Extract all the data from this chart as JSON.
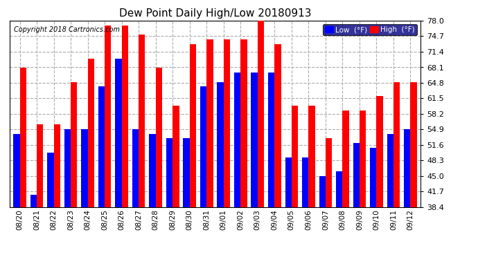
{
  "title": "Dew Point Daily High/Low 20180913",
  "copyright": "Copyright 2018 Cartronics.com",
  "legend_low_label": "Low  (°F)",
  "legend_high_label": "High  (°F)",
  "dates": [
    "08/20",
    "08/21",
    "08/22",
    "08/23",
    "08/24",
    "08/25",
    "08/26",
    "08/27",
    "08/28",
    "08/29",
    "08/30",
    "08/31",
    "09/01",
    "09/02",
    "09/03",
    "09/04",
    "09/05",
    "09/06",
    "09/07",
    "09/08",
    "09/09",
    "09/10",
    "09/11",
    "09/12"
  ],
  "low_values": [
    54.0,
    41.0,
    50.0,
    55.0,
    55.0,
    64.0,
    70.0,
    55.0,
    54.0,
    53.0,
    53.0,
    64.0,
    65.0,
    67.0,
    67.0,
    67.0,
    49.0,
    49.0,
    45.0,
    46.0,
    52.0,
    51.0,
    54.0,
    55.0
  ],
  "high_values": [
    68.0,
    56.0,
    56.0,
    65.0,
    70.0,
    77.0,
    77.0,
    75.0,
    68.0,
    60.0,
    73.0,
    74.0,
    74.0,
    74.0,
    78.0,
    73.0,
    60.0,
    60.0,
    53.0,
    59.0,
    59.0,
    62.0,
    65.0,
    65.0
  ],
  "low_color": "#0000ff",
  "high_color": "#ff0000",
  "bg_color": "#ffffff",
  "grid_color": "#aaaaaa",
  "ylim": [
    38.4,
    78.0
  ],
  "ybase": 38.4,
  "yticks": [
    38.4,
    41.7,
    45.0,
    48.3,
    51.6,
    54.9,
    58.2,
    61.5,
    64.8,
    68.1,
    71.4,
    74.7,
    78.0
  ]
}
